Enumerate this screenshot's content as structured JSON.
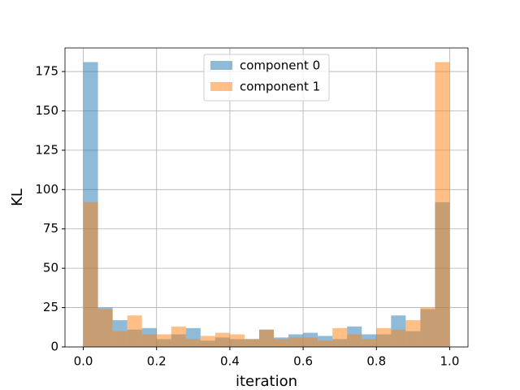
{
  "chart_data": {
    "type": "histogram",
    "xlabel": "iteration",
    "ylabel": "KL",
    "bins": [
      0,
      0.04,
      0.08,
      0.12,
      0.16,
      0.2,
      0.24,
      0.28,
      0.32,
      0.36,
      0.4,
      0.44,
      0.48,
      0.52,
      0.56,
      0.6,
      0.64,
      0.68,
      0.72,
      0.76,
      0.8,
      0.84,
      0.88,
      0.92,
      0.96,
      1
    ],
    "series": [
      {
        "name": "component 0",
        "color": "#1f77b4",
        "values": [
          181,
          25,
          17,
          11,
          12,
          5,
          8,
          12,
          4,
          6,
          5,
          5,
          11,
          6,
          8,
          9,
          7,
          5,
          13,
          8,
          8,
          20,
          10,
          24,
          92
        ]
      },
      {
        "name": "component 1",
        "color": "#ff7f0e",
        "values": [
          92,
          24,
          10,
          20,
          8,
          8,
          13,
          5,
          7,
          9,
          8,
          5,
          11,
          5,
          6,
          6,
          4,
          12,
          8,
          5,
          12,
          11,
          17,
          25,
          181
        ]
      }
    ],
    "xlim": [
      -0.05,
      1.05
    ],
    "ylim": [
      0,
      190
    ],
    "xticks": [
      {
        "value": 0,
        "label": "0.0"
      },
      0.2,
      0.4,
      0.6,
      0.8,
      {
        "value": 1,
        "label": "1.0"
      }
    ],
    "yticks": [
      0,
      25,
      50,
      75,
      100,
      125,
      150,
      175
    ],
    "grid": true,
    "legend": "upper center",
    "alpha": 0.5
  }
}
